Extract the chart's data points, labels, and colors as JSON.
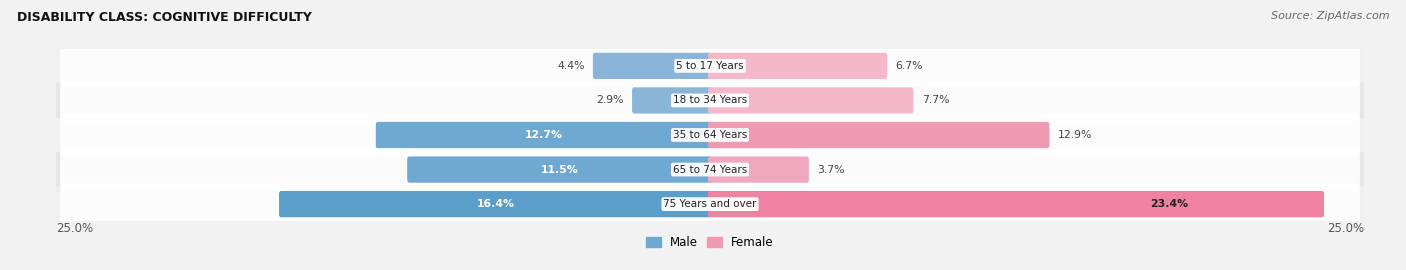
{
  "title": "DISABILITY CLASS: COGNITIVE DIFFICULTY",
  "source": "Source: ZipAtlas.com",
  "categories": [
    "5 to 17 Years",
    "18 to 34 Years",
    "35 to 64 Years",
    "65 to 74 Years",
    "75 Years and over"
  ],
  "male_values": [
    4.4,
    2.9,
    12.7,
    11.5,
    16.4
  ],
  "female_values": [
    6.7,
    7.7,
    12.9,
    3.7,
    23.4
  ],
  "male_colors": [
    "#8ab4d8",
    "#8ab4d8",
    "#6fa8d0",
    "#6fa8d0",
    "#5b9ec9"
  ],
  "female_colors": [
    "#f5b8c8",
    "#f5b8c8",
    "#f09ab2",
    "#f0a8bf",
    "#ee82a0"
  ],
  "row_bg_light": "#f0f0f0",
  "row_bg_dark": "#e6e6e6",
  "max_val": 25.0,
  "legend_male": "Male",
  "legend_female": "Female",
  "bar_height": 0.6,
  "label_inside_threshold_male": 8.0,
  "label_inside_threshold_female": 20.0
}
